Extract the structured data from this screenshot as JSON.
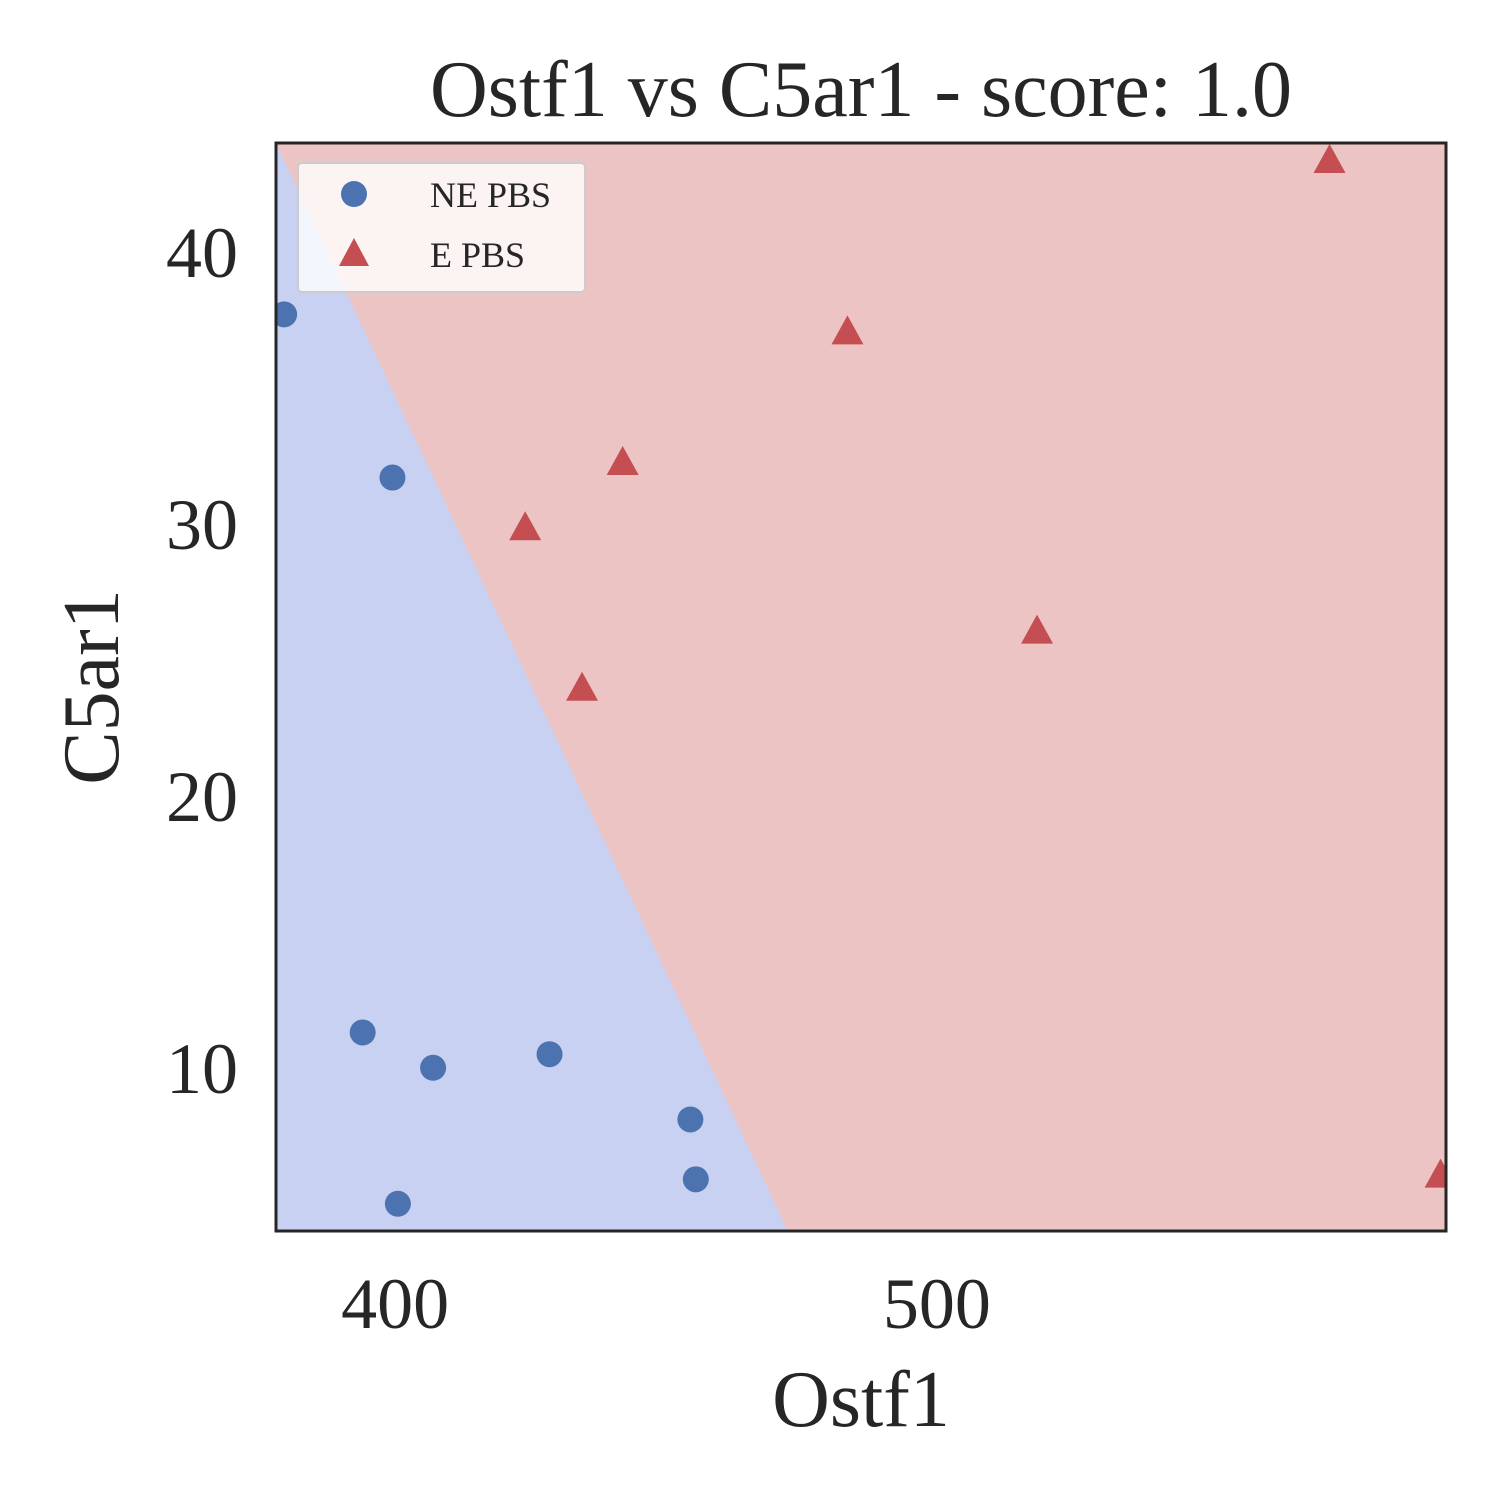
{
  "chart_data": {
    "type": "scatter",
    "title": "Ostf1 vs C5ar1 - score: 1.0",
    "xlabel": "Ostf1",
    "ylabel": "C5ar1",
    "xlim": [
      378,
      594
    ],
    "ylim": [
      4.0,
      44.0
    ],
    "xticks": [
      400,
      500
    ],
    "yticks": [
      10,
      20,
      30,
      40
    ],
    "grid": false,
    "legend_position": "top-left",
    "decision_boundary": {
      "points": [
        [
          378,
          44.0
        ],
        [
          472.5,
          4.0
        ]
      ],
      "left_region_class": "NE PBS",
      "right_region_class": "E PBS"
    },
    "series": [
      {
        "name": "NE PBS",
        "marker": "circle",
        "color": "#4c72b0",
        "points": [
          [
            379.5,
            37.7
          ],
          [
            399.5,
            31.7
          ],
          [
            394,
            11.3
          ],
          [
            407,
            10.0
          ],
          [
            428.5,
            10.5
          ],
          [
            454.5,
            8.1
          ],
          [
            455.5,
            5.9
          ],
          [
            400.5,
            5.0
          ]
        ]
      },
      {
        "name": "E PBS",
        "marker": "triangle",
        "color": "#c44e52",
        "points": [
          [
            424,
            29.8
          ],
          [
            442,
            32.2
          ],
          [
            434.5,
            23.9
          ],
          [
            483.5,
            37.0
          ],
          [
            518.5,
            26.0
          ],
          [
            572.5,
            43.3
          ],
          [
            593,
            6.0
          ]
        ]
      }
    ],
    "region_colors": {
      "NE PBS": "#c8d1f2",
      "E PBS": "#edc4c4"
    }
  }
}
